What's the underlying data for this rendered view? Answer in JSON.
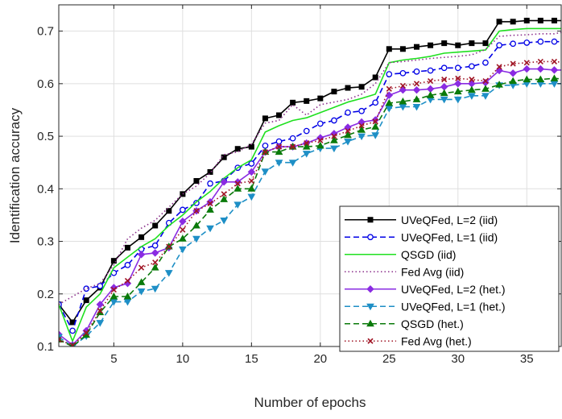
{
  "chart_data": {
    "type": "line",
    "xlabel": "Number of epochs",
    "ylabel": "Identification accuracy",
    "xlim": [
      1,
      37.5
    ],
    "ylim": [
      0.1,
      0.75
    ],
    "xticks": [
      5,
      10,
      15,
      20,
      25,
      30,
      35
    ],
    "yticks": [
      0.1,
      0.2,
      0.3,
      0.4,
      0.5,
      0.6,
      0.7
    ],
    "xtick_labels": [
      "5",
      "10",
      "15",
      "20",
      "25",
      "30",
      "35"
    ],
    "ytick_labels": [
      "0.1",
      "0.2",
      "0.3",
      "0.4",
      "0.5",
      "0.6",
      "0.7"
    ],
    "grid": true,
    "legend_position": "bottom-right",
    "x": [
      1,
      2,
      3,
      4,
      5,
      6,
      7,
      8,
      9,
      10,
      11,
      12,
      13,
      14,
      15,
      16,
      17,
      18,
      19,
      20,
      21,
      22,
      23,
      24,
      25,
      26,
      27,
      28,
      29,
      30,
      31,
      32,
      33,
      34,
      35,
      36,
      37,
      38
    ],
    "series": [
      {
        "name": "UVeQFed, L=2 (iid)",
        "color": "#000000",
        "dash": "solid",
        "marker": "square",
        "values": [
          0.18,
          0.146,
          0.188,
          0.212,
          0.263,
          0.288,
          0.308,
          0.33,
          0.358,
          0.39,
          0.415,
          0.432,
          0.46,
          0.476,
          0.48,
          0.534,
          0.54,
          0.564,
          0.567,
          0.572,
          0.585,
          0.592,
          0.594,
          0.612,
          0.666,
          0.666,
          0.67,
          0.673,
          0.677,
          0.673,
          0.677,
          0.677,
          0.718,
          0.718,
          0.72,
          0.72,
          0.72,
          0.72
        ]
      },
      {
        "name": "UVeQFed, L=1 (iid)",
        "color": "#0000e6",
        "dash": "dashed",
        "marker": "circle",
        "values": [
          0.18,
          0.13,
          0.21,
          0.215,
          0.24,
          0.255,
          0.285,
          0.292,
          0.335,
          0.36,
          0.373,
          0.41,
          0.415,
          0.44,
          0.448,
          0.482,
          0.49,
          0.496,
          0.51,
          0.524,
          0.53,
          0.545,
          0.548,
          0.564,
          0.618,
          0.62,
          0.623,
          0.625,
          0.63,
          0.63,
          0.633,
          0.64,
          0.673,
          0.676,
          0.678,
          0.68,
          0.68,
          0.68
        ]
      },
      {
        "name": "QSGD (iid)",
        "color": "#1fe01f",
        "dash": "solid",
        "marker": "none",
        "values": [
          0.18,
          0.11,
          0.175,
          0.2,
          0.25,
          0.27,
          0.29,
          0.305,
          0.33,
          0.35,
          0.375,
          0.395,
          0.42,
          0.44,
          0.455,
          0.508,
          0.52,
          0.53,
          0.535,
          0.545,
          0.555,
          0.565,
          0.572,
          0.58,
          0.64,
          0.645,
          0.648,
          0.652,
          0.658,
          0.66,
          0.662,
          0.664,
          0.7,
          0.703,
          0.705,
          0.705,
          0.705,
          0.705
        ]
      },
      {
        "name": "Fed Avg (iid)",
        "color": "#8b2f8b",
        "dash": "dotted",
        "marker": "none",
        "values": [
          0.18,
          0.195,
          0.21,
          0.22,
          0.255,
          0.305,
          0.325,
          0.34,
          0.365,
          0.39,
          0.405,
          0.43,
          0.465,
          0.47,
          0.485,
          0.525,
          0.53,
          0.56,
          0.54,
          0.56,
          0.565,
          0.57,
          0.58,
          0.6,
          0.64,
          0.642,
          0.645,
          0.648,
          0.65,
          0.652,
          0.655,
          0.665,
          0.69,
          0.692,
          0.693,
          0.695,
          0.695,
          0.7
        ]
      },
      {
        "name": "UVeQFed, L=2 (het.)",
        "color": "#8a2be2",
        "dash": "solid",
        "marker": "diamond",
        "values": [
          0.123,
          0.103,
          0.13,
          0.18,
          0.212,
          0.22,
          0.275,
          0.278,
          0.288,
          0.338,
          0.358,
          0.375,
          0.413,
          0.413,
          0.432,
          0.47,
          0.48,
          0.48,
          0.487,
          0.497,
          0.505,
          0.517,
          0.527,
          0.531,
          0.578,
          0.588,
          0.588,
          0.59,
          0.594,
          0.6,
          0.6,
          0.602,
          0.625,
          0.62,
          0.628,
          0.628,
          0.626,
          0.626
        ]
      },
      {
        "name": "UVeQFed, L=1 (het.)",
        "color": "#1e8fc6",
        "dash": "dashed",
        "marker": "triangle-down",
        "values": [
          0.118,
          0.1,
          0.12,
          0.145,
          0.185,
          0.185,
          0.205,
          0.21,
          0.24,
          0.285,
          0.305,
          0.325,
          0.34,
          0.37,
          0.385,
          0.433,
          0.45,
          0.45,
          0.467,
          0.477,
          0.477,
          0.49,
          0.5,
          0.502,
          0.553,
          0.556,
          0.556,
          0.57,
          0.57,
          0.57,
          0.577,
          0.577,
          0.597,
          0.597,
          0.6,
          0.6,
          0.6,
          0.6
        ]
      },
      {
        "name": "QSGD (het.)",
        "color": "#0a7a0a",
        "dash": "dashed",
        "marker": "triangle-up",
        "values": [
          0.113,
          0.1,
          0.122,
          0.165,
          0.195,
          0.195,
          0.222,
          0.25,
          0.29,
          0.305,
          0.33,
          0.36,
          0.38,
          0.4,
          0.4,
          0.47,
          0.47,
          0.48,
          0.48,
          0.482,
          0.492,
          0.502,
          0.512,
          0.518,
          0.563,
          0.566,
          0.57,
          0.578,
          0.582,
          0.585,
          0.588,
          0.59,
          0.598,
          0.605,
          0.608,
          0.608,
          0.61,
          0.608
        ]
      },
      {
        "name": "Fed Avg (het.)",
        "color": "#a01525",
        "dash": "dotted",
        "marker": "x",
        "values": [
          0.113,
          0.102,
          0.126,
          0.168,
          0.208,
          0.225,
          0.25,
          0.26,
          0.29,
          0.322,
          0.358,
          0.372,
          0.39,
          0.41,
          0.415,
          0.47,
          0.48,
          0.48,
          0.487,
          0.492,
          0.5,
          0.51,
          0.52,
          0.528,
          0.59,
          0.596,
          0.6,
          0.605,
          0.608,
          0.61,
          0.608,
          0.605,
          0.632,
          0.638,
          0.64,
          0.642,
          0.642,
          0.64
        ]
      }
    ]
  }
}
